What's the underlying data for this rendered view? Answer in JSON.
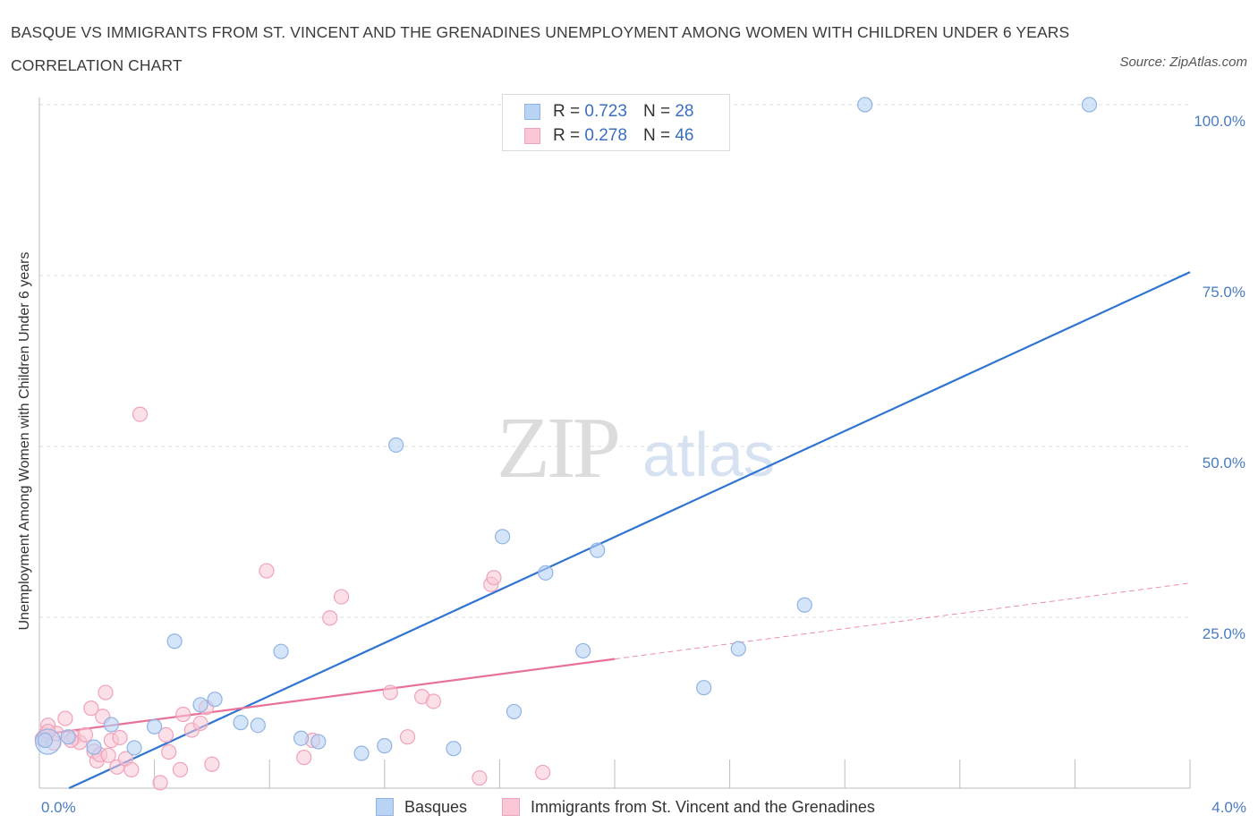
{
  "title": "BASQUE VS IMMIGRANTS FROM ST. VINCENT AND THE GRENADINES UNEMPLOYMENT AMONG WOMEN WITH CHILDREN UNDER 6 YEARS CORRELATION CHART",
  "source": "Source: ZipAtlas.com",
  "watermark": {
    "zip": "ZIP",
    "atlas": "atlas"
  },
  "legend": {
    "r_label": "R =",
    "n_label": "N =",
    "rows": [
      {
        "name": "Basques",
        "r": "0.723",
        "n": "28"
      },
      {
        "name": "Immigrants from St. Vincent and the Grenadines",
        "r": "0.278",
        "n": "46"
      }
    ]
  },
  "colors": {
    "basques_fill": "#b9d3f5",
    "basques_stroke": "#8fb3e3",
    "basques_line": "#2f74d0",
    "svg_fill": "#f9c6d6",
    "svg_stroke": "#f0a2ba",
    "svg_line": "#e8719a",
    "tick_label": "#4a7cc0",
    "grid": "#dcdcdc"
  },
  "chart_data": {
    "type": "scatter",
    "title": "BASQUE VS IMMIGRANTS FROM ST. VINCENT AND THE GRENADINES UNEMPLOYMENT AMONG WOMEN WITH CHILDREN UNDER 6 YEARS CORRELATION CHART",
    "xlabel": "",
    "ylabel": "Unemployment Among Women with Children Under 6 years",
    "xlim": [
      0,
      4
    ],
    "ylim": [
      0,
      100
    ],
    "x_tick_labels": [
      "0.0%",
      "4.0%"
    ],
    "y_tick_labels": [
      "25.0%",
      "50.0%",
      "75.0%",
      "100.0%"
    ],
    "y_ticks": [
      25,
      50,
      75,
      100
    ],
    "grid": true,
    "legend_position": "top-center",
    "series": [
      {
        "name": "Basques",
        "points": [
          [
            0.02,
            7.0
          ],
          [
            0.1,
            7.5
          ],
          [
            0.25,
            9.3
          ],
          [
            0.19,
            6.0
          ],
          [
            0.33,
            5.9
          ],
          [
            0.4,
            9.0
          ],
          [
            0.47,
            21.5
          ],
          [
            0.56,
            12.2
          ],
          [
            0.61,
            13.0
          ],
          [
            0.7,
            9.6
          ],
          [
            0.76,
            9.2
          ],
          [
            0.84,
            20.0
          ],
          [
            0.91,
            7.3
          ],
          [
            0.97,
            6.8
          ],
          [
            1.12,
            5.1
          ],
          [
            1.2,
            6.2
          ],
          [
            1.24,
            50.2
          ],
          [
            1.44,
            5.8
          ],
          [
            1.61,
            36.8
          ],
          [
            1.65,
            11.2
          ],
          [
            1.76,
            31.5
          ],
          [
            1.89,
            20.1
          ],
          [
            1.94,
            34.8
          ],
          [
            2.31,
            14.7
          ],
          [
            2.43,
            20.4
          ],
          [
            2.66,
            26.8
          ],
          [
            2.87,
            100.0
          ],
          [
            3.65,
            100.0
          ]
        ],
        "trend": {
          "x": [
            0.0,
            4.0
          ],
          "y": [
            -2.0,
            75.5
          ]
        }
      },
      {
        "name": "Immigrants from St. Vincent and the Grenadines",
        "points": [
          [
            0.01,
            7.2
          ],
          [
            0.02,
            7.8
          ],
          [
            0.03,
            9.2
          ],
          [
            0.05,
            6.6
          ],
          [
            0.06,
            8.0
          ],
          [
            0.09,
            10.2
          ],
          [
            0.12,
            7.4
          ],
          [
            0.14,
            6.7
          ],
          [
            0.16,
            7.8
          ],
          [
            0.18,
            11.7
          ],
          [
            0.19,
            5.4
          ],
          [
            0.2,
            4.0
          ],
          [
            0.21,
            4.9
          ],
          [
            0.22,
            10.5
          ],
          [
            0.23,
            14.0
          ],
          [
            0.24,
            4.8
          ],
          [
            0.25,
            7.0
          ],
          [
            0.27,
            3.1
          ],
          [
            0.28,
            7.4
          ],
          [
            0.3,
            4.3
          ],
          [
            0.32,
            2.7
          ],
          [
            0.35,
            54.7
          ],
          [
            0.42,
            0.8
          ],
          [
            0.44,
            7.8
          ],
          [
            0.45,
            5.3
          ],
          [
            0.49,
            2.7
          ],
          [
            0.5,
            10.8
          ],
          [
            0.53,
            8.5
          ],
          [
            0.56,
            9.5
          ],
          [
            0.58,
            11.8
          ],
          [
            0.6,
            3.5
          ],
          [
            0.79,
            31.8
          ],
          [
            0.92,
            4.5
          ],
          [
            0.95,
            7.0
          ],
          [
            1.01,
            24.9
          ],
          [
            1.05,
            28.0
          ],
          [
            1.22,
            14.0
          ],
          [
            1.28,
            7.5
          ],
          [
            1.33,
            13.4
          ],
          [
            1.37,
            12.7
          ],
          [
            1.53,
            1.5
          ],
          [
            1.57,
            29.8
          ],
          [
            1.58,
            30.8
          ],
          [
            1.75,
            2.3
          ],
          [
            0.03,
            8.3
          ],
          [
            0.11,
            7.0
          ]
        ],
        "trend_solid": {
          "x": [
            0.0,
            2.0
          ],
          "y": [
            7.8,
            18.9
          ]
        },
        "trend_dashed": {
          "x": [
            2.0,
            4.0
          ],
          "y": [
            18.9,
            30.0
          ]
        }
      }
    ]
  }
}
